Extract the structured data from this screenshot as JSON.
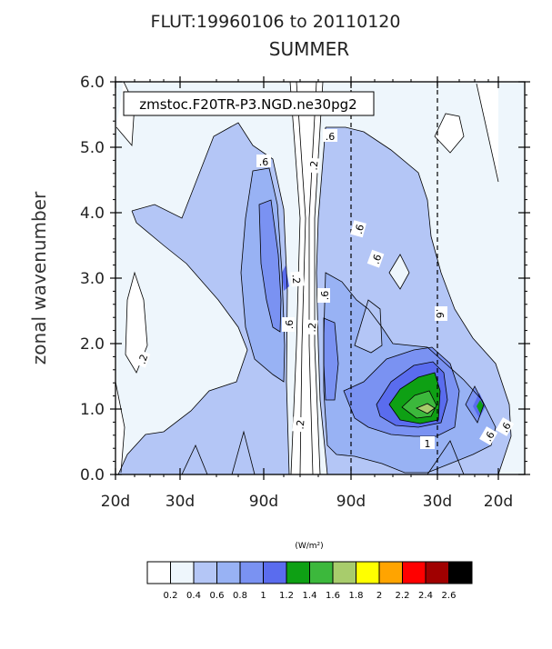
{
  "chart_data": {
    "type": "heatmap",
    "title": "FLUT:19960106 to 20110120",
    "subtitle": "SUMMER",
    "annotation": "zmstoc.F20TR-P3.NGD.ne30pg2",
    "ylabel": "zonal wavenumber",
    "ylim": [
      0,
      6
    ],
    "y_ticks": [
      "0.0",
      "1.0",
      "2.0",
      "3.0",
      "4.0",
      "5.0",
      "6.0"
    ],
    "x_ticks": [
      "20d",
      "30d",
      "90d",
      "90d",
      "30d",
      "20d"
    ],
    "contour_labels": [
      ".2",
      ".2",
      ".2",
      ".2",
      ".2",
      ".6",
      ".6",
      ".6",
      ".6",
      ".6",
      ".6",
      ".6",
      ".6",
      "1",
      ".6"
    ],
    "colorbar": {
      "units": "(W/m²)",
      "levels": [
        "0.2",
        "0.4",
        "0.6",
        "0.8",
        "1",
        "1.2",
        "1.4",
        "1.6",
        "1.8",
        "2",
        "2.2",
        "2.4",
        "2.6"
      ],
      "colors": [
        "#ffffff",
        "#eef6fc",
        "#b4c6f6",
        "#98b2f4",
        "#7a92f2",
        "#5a6cee",
        "#0ea014",
        "#3cb83c",
        "#a8cc6c",
        "#ffff00",
        "#ffa400",
        "#ff0000",
        "#a00000",
        "#000000"
      ]
    }
  }
}
